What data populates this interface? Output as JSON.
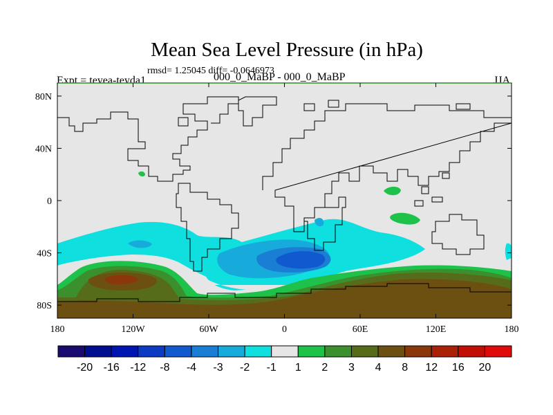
{
  "chart_data": {
    "type": "heatmap",
    "title": "Mean Sea Level Pressure (in hPa)",
    "subtitle": "rmsd= 1.25045 diff= -0.0646973",
    "left_label": "Expt = teyea-teyda1",
    "center_label": "000_0_MaBP - 000_0_MaBP",
    "right_label": "JJA",
    "x_ticks": [
      {
        "value": -180,
        "label": "180"
      },
      {
        "value": -120,
        "label": "120W"
      },
      {
        "value": -60,
        "label": "60W"
      },
      {
        "value": 0,
        "label": "0"
      },
      {
        "value": 60,
        "label": "60E"
      },
      {
        "value": 120,
        "label": "120E"
      },
      {
        "value": 180,
        "label": "180"
      }
    ],
    "y_ticks": [
      {
        "value": 80,
        "label": "80N"
      },
      {
        "value": 40,
        "label": "40N"
      },
      {
        "value": 0,
        "label": "0"
      },
      {
        "value": -40,
        "label": "40S"
      },
      {
        "value": -80,
        "label": "80S"
      }
    ],
    "xlim": [
      -180,
      180
    ],
    "ylim": [
      -90,
      90
    ],
    "colorbar": {
      "labels": [
        "-20",
        "-16",
        "-12",
        "-8",
        "-4",
        "-3",
        "-2",
        "-1",
        "1",
        "2",
        "3",
        "4",
        "8",
        "12",
        "16",
        "20"
      ],
      "colors": [
        "#1a0b70",
        "#000e8f",
        "#0015b0",
        "#0d3ac3",
        "#1159cf",
        "#1a7fd4",
        "#16abdb",
        "#0fdfdf",
        "#e6e6e6",
        "#1ec24a",
        "#3b8f2c",
        "#566c1a",
        "#6b5012",
        "#8a380b",
        "#a92106",
        "#c10f05",
        "#e00a0a"
      ]
    },
    "regions": [
      {
        "name": "lat-south-of-20S-cyan-band",
        "level": "-1",
        "color": "#0fdfdf",
        "lon": [
          -180,
          180
        ],
        "lat": [
          -53,
          -20
        ]
      },
      {
        "name": "south-atlantic-low",
        "level": "-3 to -8",
        "color": "#1159cf",
        "lon": [
          -10,
          40
        ],
        "lat": [
          -48,
          -35
        ]
      },
      {
        "name": "south-pacific-high",
        "level": "8 to 12",
        "color": "#8a380b",
        "lon": [
          -150,
          -90
        ],
        "lat": [
          -68,
          -55
        ]
      },
      {
        "name": "antarctic-high",
        "level": "4 to 8",
        "color": "#6b5012",
        "lon": [
          -180,
          180
        ],
        "lat": [
          -90,
          -60
        ]
      },
      {
        "name": "indonesia-high",
        "level": "2",
        "color": "#1ec24a",
        "lon": [
          105,
          130
        ],
        "lat": [
          -18,
          12
        ]
      }
    ]
  }
}
